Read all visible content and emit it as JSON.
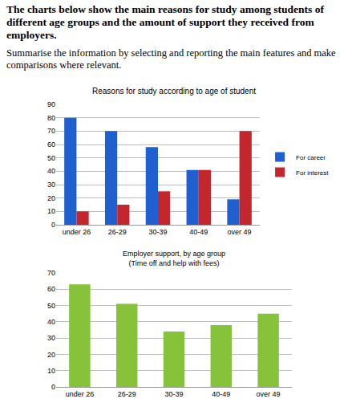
{
  "header": {
    "title": "The charts below show the main reasons for study among students of different age groups and the amount of support they received from employers.",
    "instruction": "Summarise the information by selecting and reporting the main features and make comparisons where relevant."
  },
  "chart_data": [
    {
      "type": "bar",
      "title": "Reasons for study according to age of student",
      "categories": [
        "under 26",
        "26-29",
        "30-39",
        "40-49",
        "over 49"
      ],
      "series": [
        {
          "name": "For career",
          "color": "#1f5fd0",
          "values": [
            80,
            70,
            58,
            41,
            19
          ]
        },
        {
          "name": "For interest",
          "color": "#c4262e",
          "values": [
            10,
            15,
            25,
            41,
            70
          ]
        }
      ],
      "ylim": [
        0,
        90
      ],
      "yticks": [
        0,
        10,
        20,
        30,
        40,
        50,
        60,
        70,
        80,
        90
      ],
      "grid": true,
      "legend": "right"
    },
    {
      "type": "bar",
      "title": "Employer support, by age group",
      "subtitle": "(Time off and help with fees)",
      "categories": [
        "under 26",
        "26-29",
        "30-39",
        "40-49",
        "over 49"
      ],
      "values": [
        63,
        51,
        34,
        38,
        45
      ],
      "color": "#86c23a",
      "ylim": [
        0,
        70
      ],
      "yticks": [
        0,
        10,
        20,
        30,
        40,
        50,
        60,
        70
      ],
      "grid": true
    }
  ]
}
